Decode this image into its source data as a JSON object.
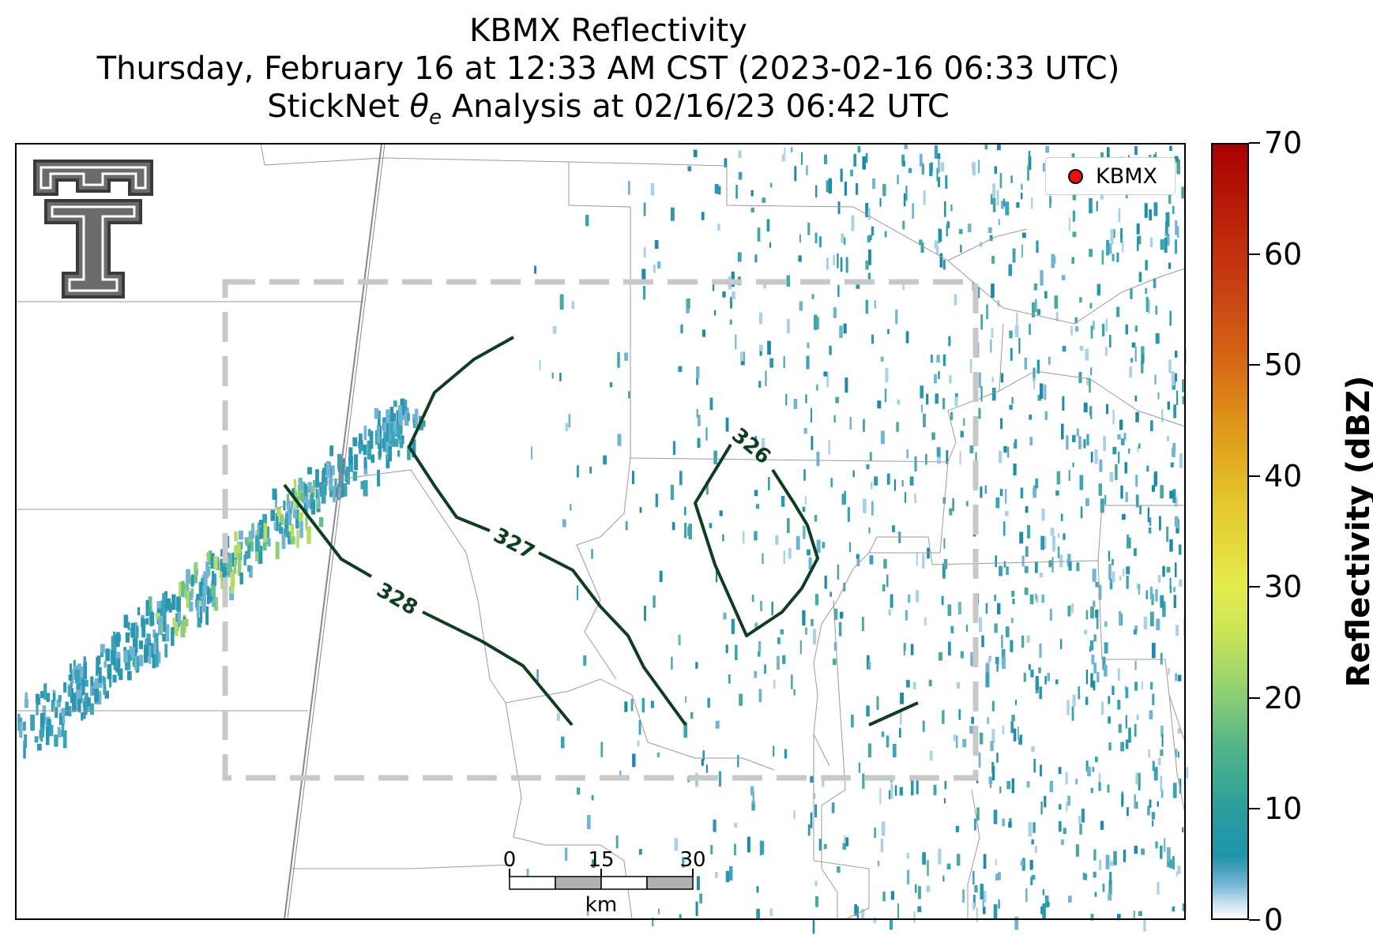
{
  "title": {
    "line1": "KBMX Reflectivity",
    "line2": "Thursday, February 16 at 12:33 AM CST (2023-02-16 06:33 UTC)",
    "line3_prefix": "StickNet ",
    "line3_symbol": "θ",
    "line3_sub": "e",
    "line3_suffix": " Analysis at 02/16/23 06:42 UTC"
  },
  "legend": {
    "label": "KBMX",
    "marker_color": "#ee1111"
  },
  "colorbar": {
    "label": "Reflectivity (dBZ)",
    "ticks": [
      "70",
      "60",
      "50",
      "40",
      "30",
      "20",
      "10",
      "0"
    ],
    "range": [
      0,
      70
    ]
  },
  "scalebar": {
    "ticks": [
      "0",
      "15",
      "30"
    ],
    "unit": "km"
  },
  "contours": {
    "labels": [
      "326",
      "327",
      "328"
    ],
    "color": "#0e3d1f"
  },
  "logo": {
    "icon": "double-t-logo-icon",
    "colors": {
      "fill": "#6b6b6b",
      "outline": "#3a3a3a"
    }
  },
  "colors": {
    "domain_box": "#c8c8c8",
    "county_lines": "#9a9a9a",
    "radar_echo": "#2b96b0"
  }
}
